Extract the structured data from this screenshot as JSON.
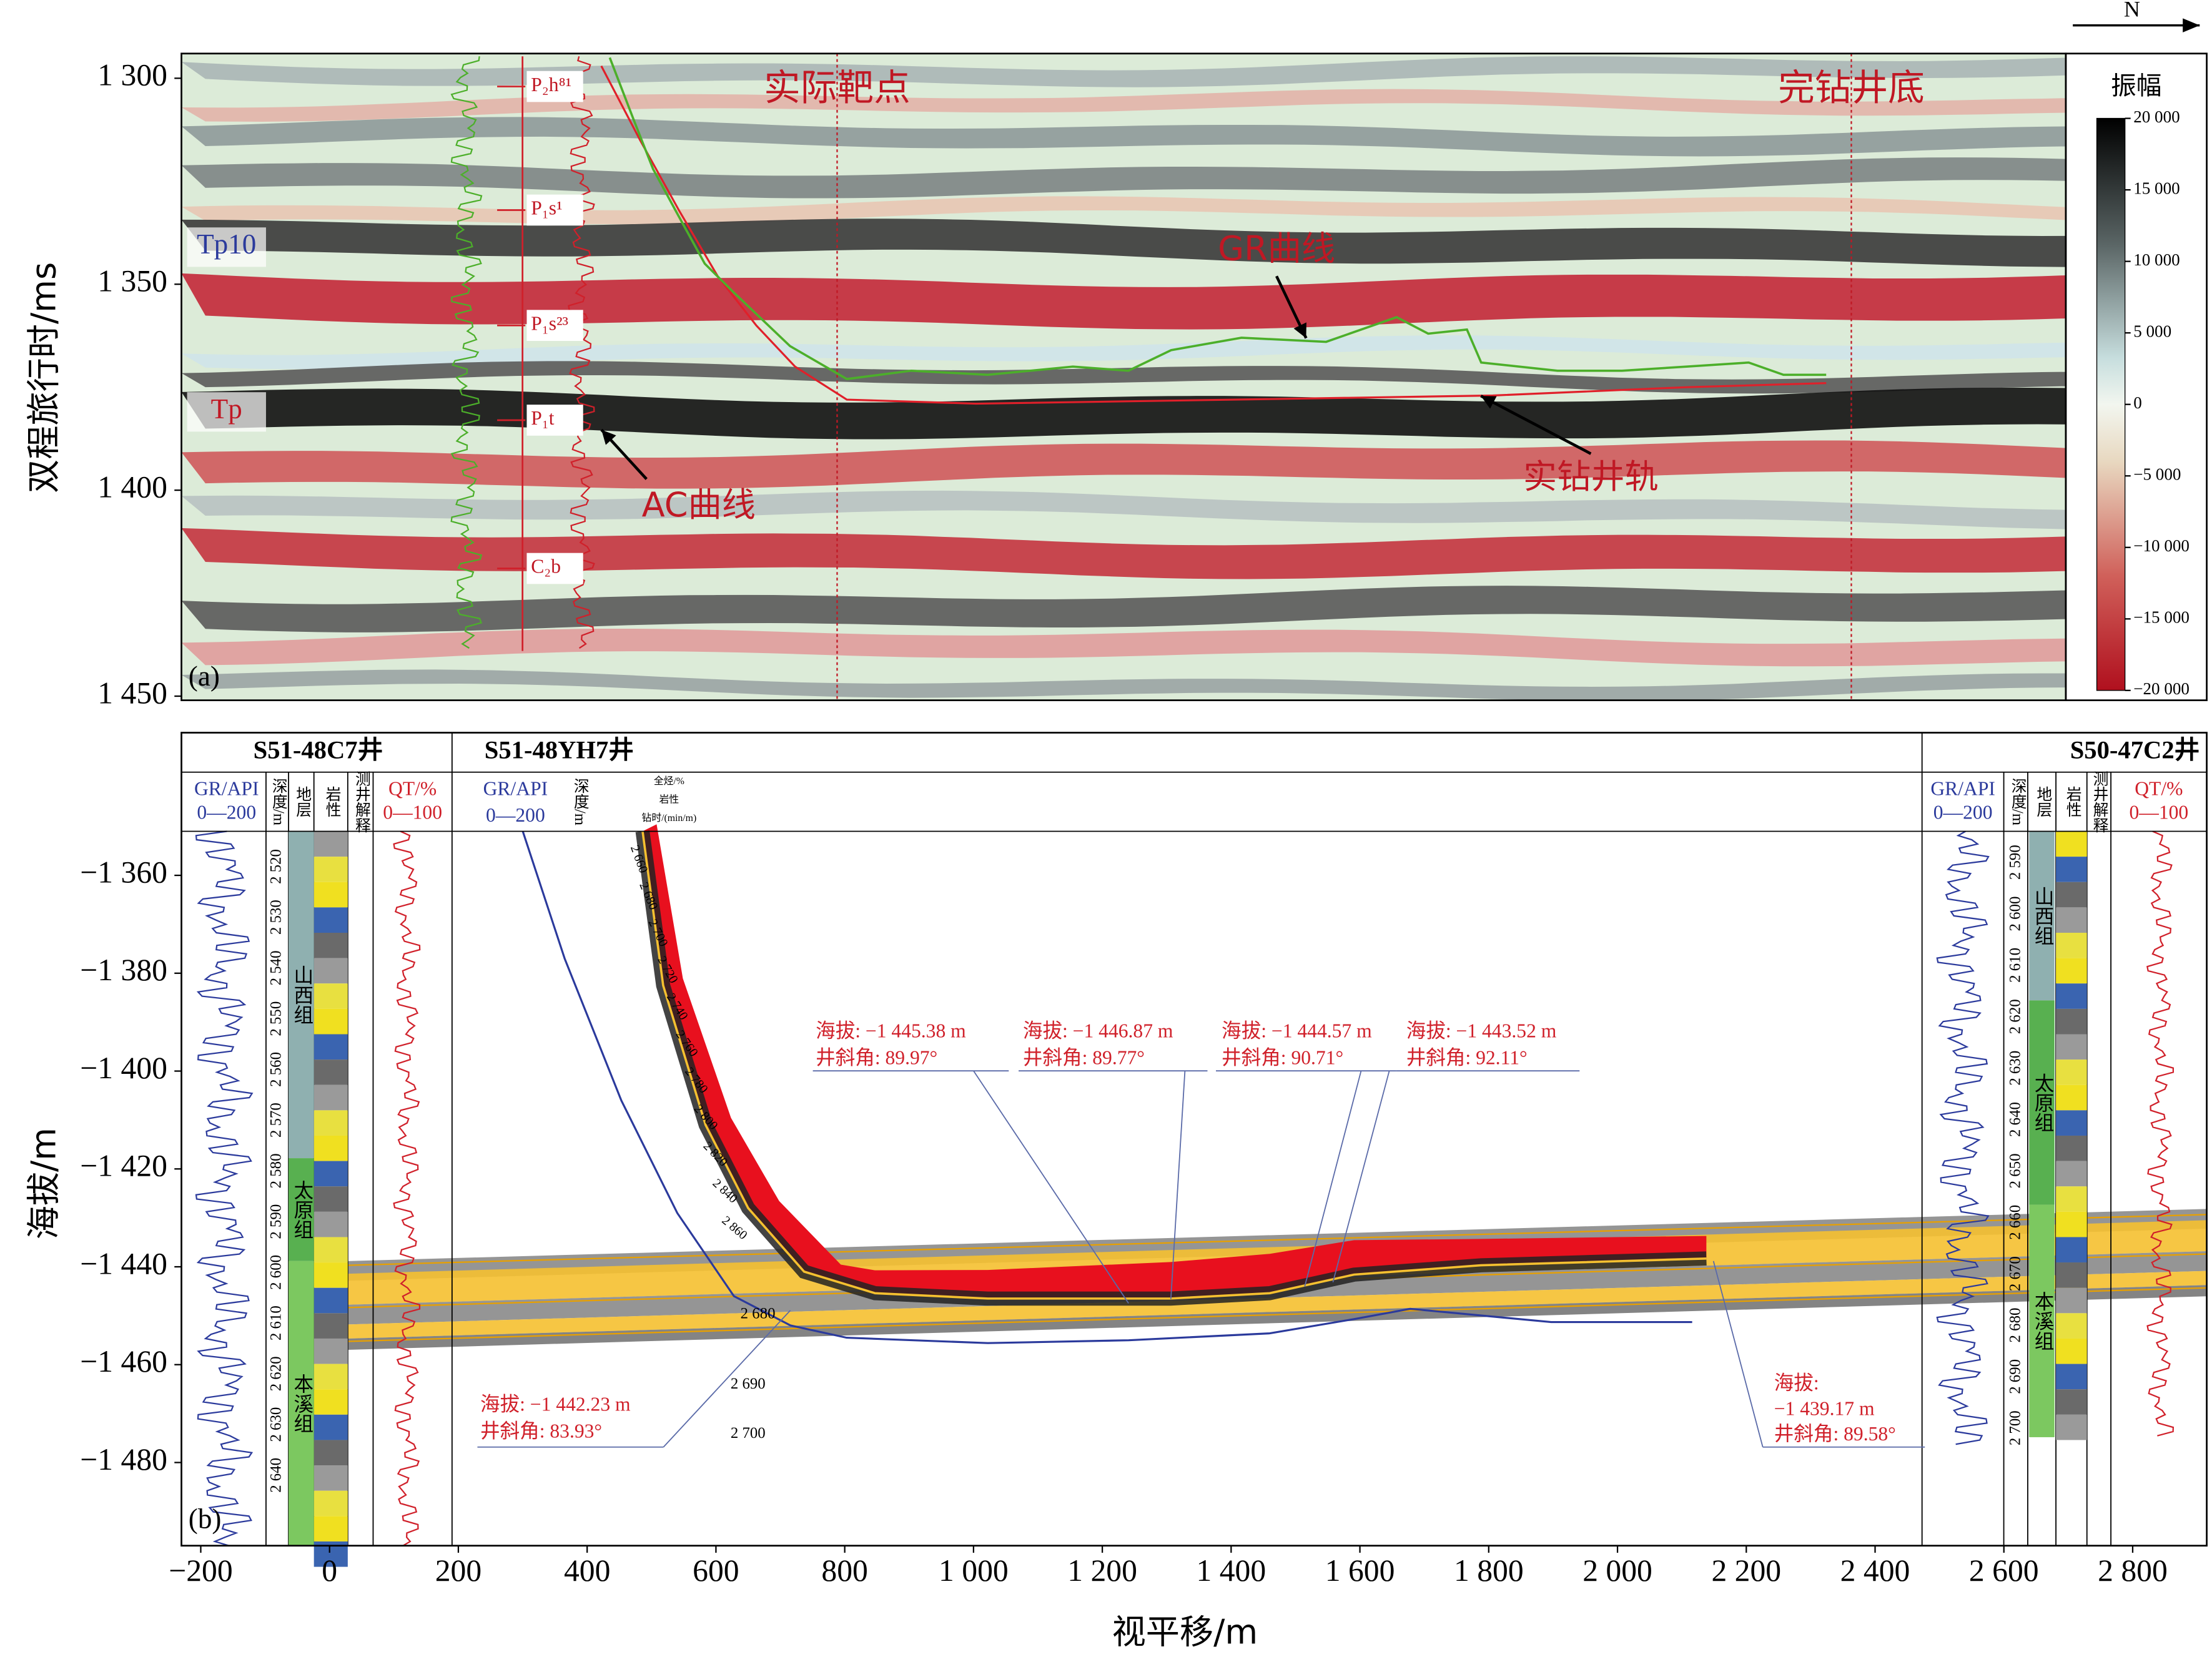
{
  "figure": {
    "north_label": "N"
  },
  "chart_data": [
    {
      "type": "seismic-section",
      "panel_label": "(a)",
      "y_label": "双程旅行时/ms",
      "xlim": [
        -230,
        2687
      ],
      "ylim": [
        1294,
        1451
      ],
      "yticks": [
        {
          "value": 1300,
          "label": "1 300"
        },
        {
          "value": 1350,
          "label": "1 350"
        },
        {
          "value": 1400,
          "label": "1 400"
        },
        {
          "value": 1450,
          "label": "1 450"
        }
      ],
      "colorbar": {
        "title": "振幅",
        "lim": [
          -20000,
          20000
        ],
        "ticks": [
          {
            "value": 20000,
            "label": "20 000"
          },
          {
            "value": 15000,
            "label": "15 000"
          },
          {
            "value": 10000,
            "label": "10 000"
          },
          {
            "value": 5000,
            "label": "5 000"
          },
          0,
          {
            "value": -5000,
            "label": "−5 000"
          },
          {
            "value": -10000,
            "label": "−10 000"
          },
          {
            "value": -15000,
            "label": "−15 000"
          },
          {
            "value": -20000,
            "label": "−20 000"
          }
        ]
      },
      "horizons": [
        {
          "label": "Tp10",
          "value": 1341
        },
        {
          "label": "Tp",
          "value": 1381
        }
      ],
      "formation_tops": [
        {
          "label": "P₂h⁸¹",
          "value": 1302
        },
        {
          "label": "P₁s¹",
          "value": 1332
        },
        {
          "label": "P₁s²³",
          "value": 1360
        },
        {
          "label": "P₁t",
          "value": 1383
        },
        {
          "label": "C₂b",
          "value": 1419
        }
      ],
      "markers": [
        {
          "label": "实际靶点",
          "x": 785
        },
        {
          "label": "完钻井底",
          "x": 2355
        }
      ],
      "annotations": [
        "GR曲线",
        "AC曲线",
        "实钻井轨"
      ],
      "series": [
        {
          "color": "#e0202a",
          "x": [
            420,
            480,
            540,
            600,
            660,
            720,
            800,
            1000,
            1400,
            1800,
            2100,
            2316
          ],
          "values": [
            1297,
            1315,
            1332,
            1348,
            1360,
            1370,
            1378,
            1379,
            1378,
            1377,
            1375,
            1374
          ]
        },
        {
          "color": "#4caf2a",
          "x": [
            433,
            470,
            500,
            538,
            580,
            625,
            712,
            800,
            900,
            1018,
            1150,
            1236,
            1302,
            1411,
            1542,
            1651,
            1700,
            1760,
            1782,
            1900,
            2000,
            2100,
            2196,
            2250,
            2316
          ],
          "values": [
            1295,
            1310,
            1322,
            1333,
            1345,
            1352,
            1365,
            1373,
            1371,
            1372,
            1370,
            1371,
            1366,
            1363,
            1364,
            1358,
            1362,
            1361,
            1369,
            1371,
            1371,
            1370,
            1369,
            1372,
            1372
          ]
        }
      ]
    },
    {
      "type": "well-section",
      "panel_label": "(b)",
      "x_label": "视平移/m",
      "y_label": "海拔/m",
      "xlim": [
        -230,
        2915
      ],
      "ylim": [
        -1351,
        -1497
      ],
      "xticks": [
        {
          "value": -200,
          "label": "−200"
        },
        0,
        200,
        400,
        600,
        800,
        {
          "value": 1000,
          "label": "1 000"
        },
        {
          "value": 1200,
          "label": "1 200"
        },
        {
          "value": 1400,
          "label": "1 400"
        },
        {
          "value": 1600,
          "label": "1 600"
        },
        {
          "value": 1800,
          "label": "1 800"
        },
        {
          "value": 2000,
          "label": "2 000"
        },
        {
          "value": 2200,
          "label": "2 200"
        },
        {
          "value": 2400,
          "label": "2 400"
        },
        {
          "value": 2600,
          "label": "2 600"
        },
        {
          "value": 2800,
          "label": "2 800"
        }
      ],
      "yticks": [
        {
          "value": -1360,
          "label": "−1 360"
        },
        {
          "value": -1380,
          "label": "−1 380"
        },
        {
          "value": -1400,
          "label": "−1 400"
        },
        {
          "value": -1420,
          "label": "−1 420"
        },
        {
          "value": -1440,
          "label": "−1 440"
        },
        {
          "value": -1460,
          "label": "−1 460"
        },
        {
          "value": -1480,
          "label": "−1 480"
        }
      ],
      "wells": [
        {
          "name": "S51-48C7井",
          "headers": [
            "GR/API",
            "0—200",
            "深度/m",
            "地层",
            "岩性",
            "测井解释",
            "QT/%",
            "0—100"
          ],
          "depths": [
            "2 520",
            "2 530",
            "2 540",
            "2 550",
            "2 560",
            "2 570",
            "2 580",
            "2 590",
            "2 600",
            "2 610",
            "2 620",
            "2 630",
            "2 640"
          ],
          "formations": [
            "山西组",
            "太原组",
            "本溪组"
          ]
        },
        {
          "name": "S51-48YH7井",
          "headers": [
            "GR/API",
            "0—200",
            "深度/m",
            "全烃/%",
            "岩性",
            "钻时/(min/m)"
          ],
          "depths": [
            "2 660",
            "2 680",
            "2 700",
            "2 720",
            "2 740",
            "2 760",
            "2 780",
            "2 800",
            "2 820",
            "2 840",
            "2 860"
          ],
          "extra_depths": [
            "2 680",
            "2 690",
            "2 700"
          ]
        },
        {
          "name": "S50-47C2井",
          "headers": [
            "GR/API",
            "0—200",
            "深度/m",
            "地层",
            "岩性",
            "测井解释",
            "QT/%",
            "0—100"
          ],
          "depths": [
            "2 590",
            "2 600",
            "2 610",
            "2 620",
            "2 630",
            "2 640",
            "2 650",
            "2 660",
            "2 670",
            "2 680",
            "2 690",
            "2 700"
          ],
          "formations": [
            "山西组",
            "太原组",
            "本溪组"
          ]
        }
      ],
      "callouts": [
        {
          "lines": [
            "海拔: −1 445.38 m",
            "井斜角: 89.97°"
          ]
        },
        {
          "lines": [
            "海拔: −1 446.87 m",
            "井斜角: 89.77°"
          ]
        },
        {
          "lines": [
            "海拔: −1 444.57 m",
            "井斜角: 90.71°"
          ]
        },
        {
          "lines": [
            "海拔: −1 443.52 m",
            "井斜角: 92.11°"
          ]
        },
        {
          "lines": [
            "海拔: −1 442.23 m",
            "井斜角:  83.93°"
          ]
        },
        {
          "lines": [
            "海拔:",
            "−1 439.17 m",
            "井斜角: 89.58°"
          ]
        }
      ],
      "series": [
        {
          "color": "#111111",
          "x": [
            486,
            518,
            584,
            650,
            737,
            847,
            1022,
            1306,
            1460,
            1591,
            1788,
            2138
          ],
          "values": [
            -1351,
            -1382.5,
            -1411,
            -1428,
            -1441,
            -1445.4,
            -1446.5,
            -1446.5,
            -1445.4,
            -1441.6,
            -1439.7,
            -1438.3
          ]
        },
        {
          "color": "#2b3a9c",
          "x": [
            300,
            365,
            453,
            540,
            628,
            716,
            803,
            1022,
            1241,
            1460,
            1591,
            1678,
            1897,
            2116
          ],
          "values": [
            -1351,
            -1377,
            -1406,
            -1429,
            -1446,
            -1452,
            -1454.5,
            -1455.6,
            -1455,
            -1453.6,
            -1450.7,
            -1448.6,
            -1451.3,
            -1451.3
          ]
        }
      ]
    }
  ]
}
